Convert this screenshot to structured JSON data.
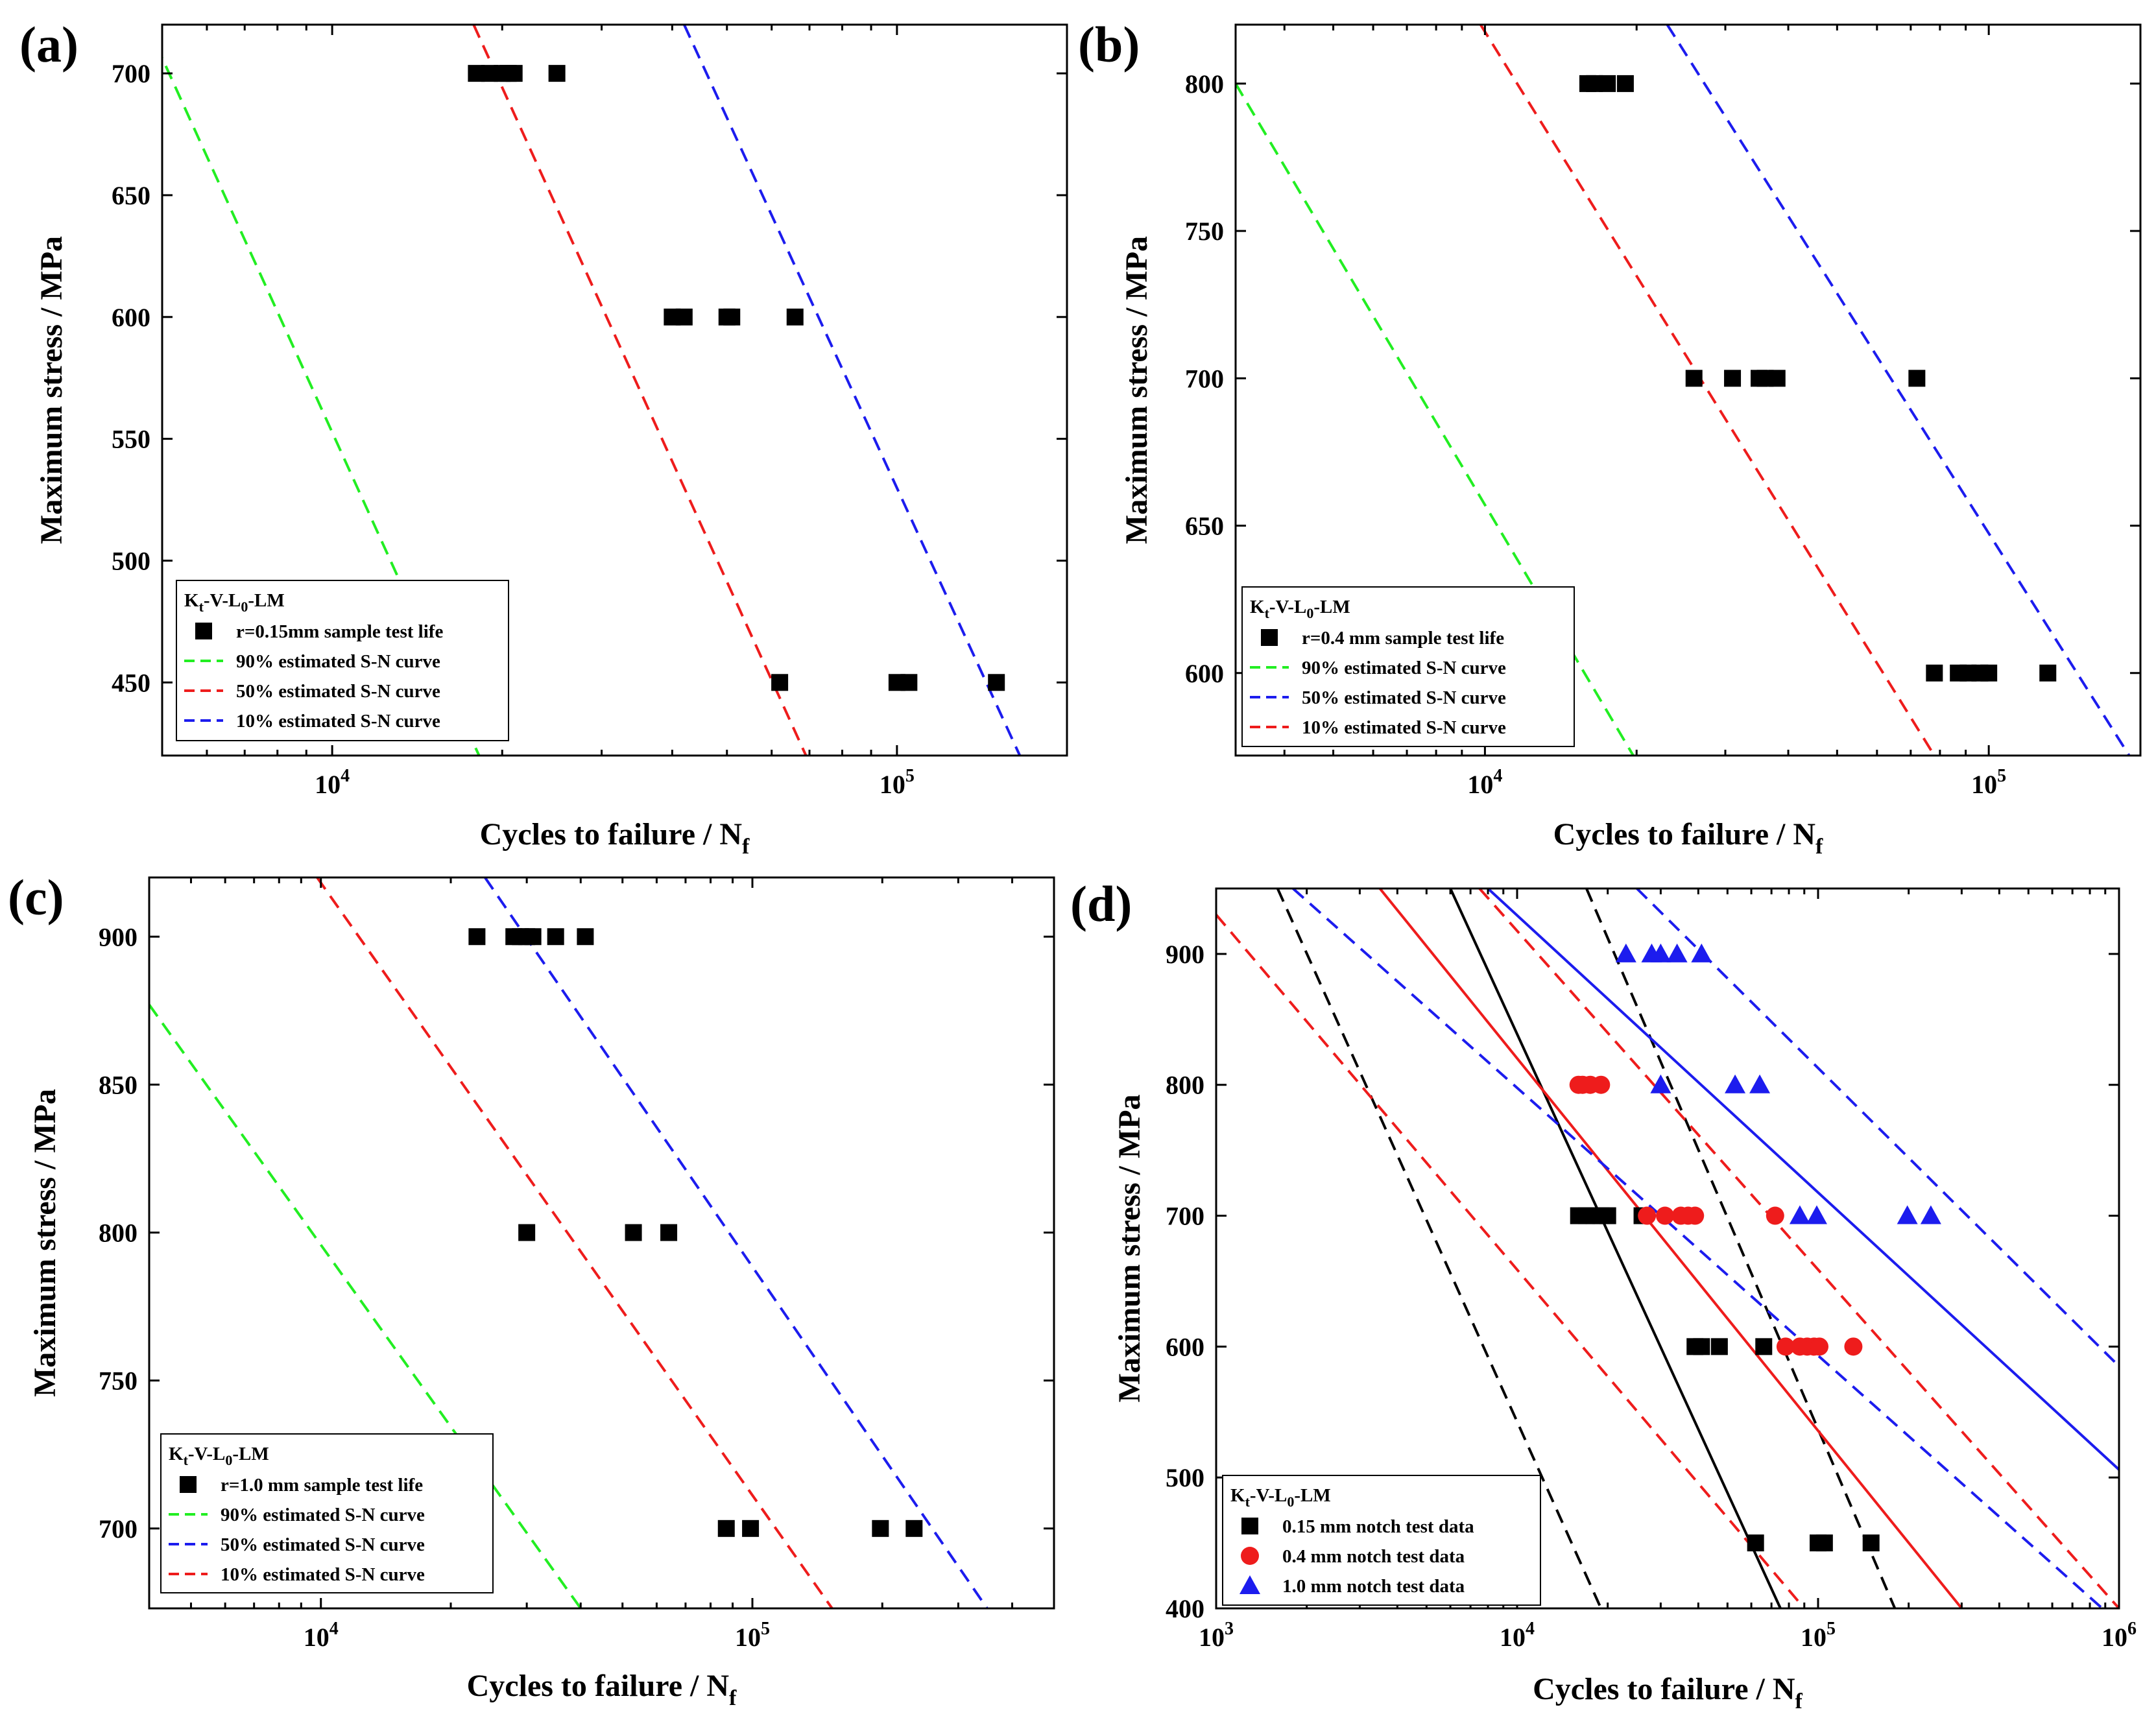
{
  "figure": {
    "ylabel": "Maximum stress / MPa",
    "xlabel_main": "Cycles to failure / N",
    "xlabel_sub": "f"
  },
  "colors": {
    "black": "#000000",
    "red": "#ee1c1c",
    "green": "#22ee22",
    "blue": "#1c1cee"
  },
  "chart_data": [
    {
      "panel": "(a)",
      "type": "scatter",
      "xscale": "log",
      "xlim": [
        5000,
        200000
      ],
      "ylim": [
        420,
        720
      ],
      "xticks": [
        {
          "v": 10000,
          "m": "10",
          "e": "4"
        },
        {
          "v": 100000,
          "m": "10",
          "e": "5"
        }
      ],
      "yticks": [
        450,
        500,
        550,
        600,
        650,
        700
      ],
      "legend": {
        "title_main": "K",
        "title_t": "t",
        "title_mid": "-V-L",
        "title_0": "0",
        "title_end": "-LM",
        "placement": "bottom-left"
      },
      "series": [
        {
          "name": "r=0.15mm sample test life",
          "kind": "points",
          "marker": "square",
          "color": "#000000",
          "points": [
            [
              18000,
              700
            ],
            [
              19000,
              700
            ],
            [
              20000,
              700
            ],
            [
              20500,
              700
            ],
            [
              21000,
              700
            ],
            [
              25000,
              700
            ],
            [
              40000,
              600
            ],
            [
              42000,
              600
            ],
            [
              50000,
              600
            ],
            [
              51000,
              600
            ],
            [
              66000,
              600
            ],
            [
              62000,
              450
            ],
            [
              100000,
              450
            ],
            [
              105000,
              450
            ],
            [
              150000,
              450
            ]
          ]
        },
        {
          "name": "90% estimated S-N curve",
          "kind": "line",
          "dash": true,
          "color": "#22ee22",
          "points": [
            [
              4700,
              720
            ],
            [
              18200,
              420
            ]
          ]
        },
        {
          "name": "50% estimated S-N curve",
          "kind": "line",
          "dash": true,
          "color": "#ee1c1c",
          "points": [
            [
              17800,
              720
            ],
            [
              69000,
              420
            ]
          ]
        },
        {
          "name": "10% estimated S-N curve",
          "kind": "line",
          "dash": true,
          "color": "#1c1cee",
          "points": [
            [
              42000,
              720
            ],
            [
              165000,
              420
            ]
          ]
        }
      ]
    },
    {
      "panel": "(b)",
      "type": "scatter",
      "xscale": "log",
      "xlim": [
        3200,
        200000
      ],
      "ylim": [
        572,
        820
      ],
      "xticks": [
        {
          "v": 10000,
          "m": "10",
          "e": "4"
        },
        {
          "v": 100000,
          "m": "10",
          "e": "5"
        }
      ],
      "yticks": [
        600,
        650,
        700,
        750,
        800
      ],
      "legend": {
        "title_main": "K",
        "title_t": "t",
        "title_mid": "-V-L",
        "title_0": "0",
        "title_end": "-LM",
        "placement": "bottom-left"
      },
      "series": [
        {
          "name": "r=0.4 mm sample test life",
          "kind": "points",
          "marker": "square",
          "color": "#000000",
          "points": [
            [
              16000,
              800
            ],
            [
              16500,
              800
            ],
            [
              17500,
              800
            ],
            [
              19000,
              800
            ],
            [
              26000,
              700
            ],
            [
              31000,
              700
            ],
            [
              35000,
              700
            ],
            [
              36000,
              700
            ],
            [
              38000,
              700
            ],
            [
              72000,
              700
            ],
            [
              78000,
              600
            ],
            [
              87000,
              600
            ],
            [
              91000,
              600
            ],
            [
              96000,
              600
            ],
            [
              100000,
              600
            ],
            [
              131000,
              600
            ]
          ]
        },
        {
          "name": "90% estimated S-N curve",
          "kind": "line",
          "dash": true,
          "color": "#22ee22",
          "points": [
            [
              3200,
              800
            ],
            [
              19700,
              572
            ]
          ]
        },
        {
          "name": "50% estimated S-N curve",
          "kind": "line",
          "dash": true,
          "color": "#1c1cee",
          "points": [
            [
              23000,
              820
            ],
            [
              190000,
              572
            ]
          ]
        },
        {
          "name": "10% estimated S-N curve",
          "kind": "line",
          "dash": true,
          "color": "#ee1c1c",
          "points": [
            [
              9800,
              820
            ],
            [
              78000,
              572
            ]
          ]
        }
      ]
    },
    {
      "panel": "(c)",
      "type": "scatter",
      "xscale": "log",
      "xlim": [
        4000,
        500000
      ],
      "ylim": [
        673,
        920
      ],
      "xticks": [
        {
          "v": 10000,
          "m": "10",
          "e": "4"
        },
        {
          "v": 100000,
          "m": "10",
          "e": "5"
        }
      ],
      "yticks": [
        700,
        750,
        800,
        850,
        900
      ],
      "legend": {
        "title_main": "K",
        "title_t": "t",
        "title_mid": "-V-L",
        "title_0": "0",
        "title_end": "-LM",
        "placement": "bottom-left"
      },
      "series": [
        {
          "name": "r=1.0 mm sample test life",
          "kind": "points",
          "marker": "square",
          "color": "#000000",
          "points": [
            [
              23000,
              900
            ],
            [
              28000,
              900
            ],
            [
              29000,
              900
            ],
            [
              30000,
              900
            ],
            [
              31000,
              900
            ],
            [
              35000,
              900
            ],
            [
              41000,
              900
            ],
            [
              30000,
              800
            ],
            [
              53000,
              800
            ],
            [
              64000,
              800
            ],
            [
              87000,
              700
            ],
            [
              99000,
              700
            ],
            [
              198000,
              700
            ],
            [
              237000,
              700
            ]
          ]
        },
        {
          "name": "90% estimated S-N curve",
          "kind": "line",
          "dash": true,
          "color": "#22ee22",
          "points": [
            [
              4000,
              877
            ],
            [
              40000,
              673
            ]
          ]
        },
        {
          "name": "50% estimated S-N curve",
          "kind": "line",
          "dash": true,
          "color": "#1c1cee",
          "points": [
            [
              24000,
              920
            ],
            [
              350000,
              673
            ]
          ]
        },
        {
          "name": "10% estimated S-N curve",
          "kind": "line",
          "dash": true,
          "color": "#ee1c1c",
          "points": [
            [
              9800,
              920
            ],
            [
              153000,
              673
            ]
          ]
        }
      ]
    },
    {
      "panel": "(d)",
      "type": "scatter",
      "xscale": "log",
      "xlim": [
        1000,
        1000000
      ],
      "ylim": [
        400,
        950
      ],
      "xticks": [
        {
          "v": 1000,
          "m": "10",
          "e": "3"
        },
        {
          "v": 10000,
          "m": "10",
          "e": "4"
        },
        {
          "v": 100000,
          "m": "10",
          "e": "5"
        },
        {
          "v": 1000000,
          "m": "10",
          "e": "6"
        }
      ],
      "yticks": [
        400,
        500,
        600,
        700,
        800,
        900
      ],
      "legend": {
        "title_main": "K",
        "title_t": "t",
        "title_mid": "-V-L",
        "title_0": "0",
        "title_end": "-LM",
        "placement": "bottom-left"
      },
      "series": [
        {
          "name": "0.15  mm notch test data",
          "kind": "points",
          "marker": "square",
          "color": "#000000",
          "points": [
            [
              16000,
              700
            ],
            [
              17000,
              700
            ],
            [
              18000,
              700
            ],
            [
              19000,
              700
            ],
            [
              20000,
              700
            ],
            [
              26000,
              700
            ],
            [
              39000,
              600
            ],
            [
              41000,
              600
            ],
            [
              47000,
              600
            ],
            [
              66000,
              600
            ],
            [
              62000,
              450
            ],
            [
              100000,
              450
            ],
            [
              105000,
              450
            ],
            [
              150000,
              450
            ]
          ]
        },
        {
          "name": "0.4   mm notch test data",
          "kind": "points",
          "marker": "circle",
          "color": "#ee1c1c",
          "points": [
            [
              16000,
              800
            ],
            [
              16500,
              800
            ],
            [
              17500,
              800
            ],
            [
              19000,
              800
            ],
            [
              27000,
              700
            ],
            [
              31000,
              700
            ],
            [
              35000,
              700
            ],
            [
              37000,
              700
            ],
            [
              39000,
              700
            ],
            [
              72000,
              700
            ],
            [
              78000,
              600
            ],
            [
              87000,
              600
            ],
            [
              92000,
              600
            ],
            [
              97000,
              600
            ],
            [
              101000,
              600
            ],
            [
              131000,
              600
            ]
          ]
        },
        {
          "name": "1.0   mm notch test data",
          "kind": "points",
          "marker": "triangle",
          "color": "#1c1cee",
          "points": [
            [
              23000,
              900
            ],
            [
              28000,
              900
            ],
            [
              30000,
              900
            ],
            [
              34000,
              900
            ],
            [
              41000,
              900
            ],
            [
              30000,
              800
            ],
            [
              53000,
              800
            ],
            [
              64000,
              800
            ],
            [
              87000,
              700
            ],
            [
              99000,
              700
            ],
            [
              198000,
              700
            ],
            [
              237000,
              700
            ]
          ]
        },
        {
          "kind": "line",
          "dash": false,
          "color": "#000000",
          "points": [
            [
              6000,
              950
            ],
            [
              75000,
              400
            ]
          ]
        },
        {
          "kind": "line",
          "dash": true,
          "color": "#000000",
          "points": [
            [
              1600,
              950
            ],
            [
              19000,
              400
            ]
          ]
        },
        {
          "kind": "line",
          "dash": true,
          "color": "#000000",
          "points": [
            [
              17000,
              950
            ],
            [
              180000,
              400
            ]
          ]
        },
        {
          "kind": "line",
          "dash": false,
          "color": "#ee1c1c",
          "points": [
            [
              3500,
              950
            ],
            [
              300000,
              400
            ]
          ]
        },
        {
          "kind": "line",
          "dash": true,
          "color": "#ee1c1c",
          "points": [
            [
              1000,
              930
            ],
            [
              90000,
              400
            ]
          ]
        },
        {
          "kind": "line",
          "dash": true,
          "color": "#ee1c1c",
          "points": [
            [
              7500,
              950
            ],
            [
              1000000,
              400
            ]
          ]
        },
        {
          "kind": "line",
          "dash": false,
          "color": "#1c1cee",
          "points": [
            [
              8000,
              950
            ],
            [
              1000000,
              506
            ]
          ]
        },
        {
          "kind": "line",
          "dash": true,
          "color": "#1c1cee",
          "points": [
            [
              1800,
              950
            ],
            [
              880000,
              400
            ]
          ]
        },
        {
          "kind": "line",
          "dash": true,
          "color": "#1c1cee",
          "points": [
            [
              25000,
              950
            ],
            [
              1000000,
              585
            ]
          ]
        }
      ]
    }
  ]
}
